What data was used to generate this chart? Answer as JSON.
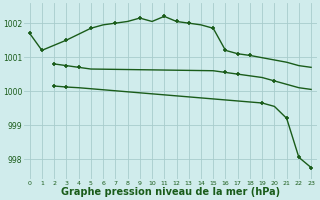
{
  "bg_color": "#d0ecec",
  "line_color": "#1a5c1a",
  "grid_color": "#a8cccc",
  "xlabel": "Graphe pression niveau de la mer (hPa)",
  "xlabel_fontsize": 7,
  "yticks": [
    998,
    999,
    1000,
    1001,
    1002
  ],
  "xtick_labels": [
    "0",
    "1",
    "2",
    "3",
    "4",
    "5",
    "6",
    "7",
    "8",
    "9",
    "10",
    "11",
    "12",
    "13",
    "14",
    "15",
    "16",
    "17",
    "18",
    "19",
    "20",
    "21",
    "22",
    "23"
  ],
  "ylim": [
    997.4,
    1002.6
  ],
  "xlim": [
    -0.5,
    23.5
  ],
  "curve1": {
    "x": [
      0,
      1,
      3,
      5,
      6,
      7,
      8,
      9,
      10,
      11,
      12,
      13,
      14,
      15,
      16,
      17,
      18,
      21,
      22,
      23
    ],
    "y": [
      1001.7,
      1001.2,
      1001.5,
      1001.85,
      1001.95,
      1002.0,
      1002.05,
      1002.15,
      1002.05,
      1002.2,
      1002.05,
      1002.0,
      1001.95,
      1001.85,
      1001.2,
      1001.1,
      1001.05,
      1000.85,
      1000.75,
      1000.7
    ]
  },
  "curve2": {
    "x": [
      2,
      3,
      4,
      5,
      15,
      16,
      17,
      18,
      19,
      20,
      21,
      22,
      23
    ],
    "y": [
      1000.8,
      1000.75,
      1000.7,
      1000.65,
      1000.6,
      1000.55,
      1000.5,
      1000.45,
      1000.4,
      1000.3,
      1000.2,
      1000.1,
      1000.05
    ]
  },
  "curve3": {
    "x": [
      2,
      3,
      4,
      19,
      20,
      21,
      22,
      23
    ],
    "y": [
      1000.15,
      1000.12,
      1000.1,
      999.65,
      999.55,
      999.2,
      998.05,
      997.75
    ]
  },
  "markers1": {
    "x": [
      0,
      1,
      3,
      5,
      7,
      9,
      11,
      12,
      13,
      15,
      16,
      17,
      18
    ],
    "y": [
      1001.7,
      1001.2,
      1001.5,
      1001.85,
      1002.0,
      1002.15,
      1002.2,
      1002.05,
      1002.0,
      1001.85,
      1001.2,
      1001.1,
      1001.05
    ]
  },
  "markers2": {
    "x": [
      2,
      3,
      4,
      16,
      17,
      20
    ],
    "y": [
      1000.8,
      1000.75,
      1000.7,
      1000.55,
      1000.5,
      1000.3
    ]
  },
  "markers3": {
    "x": [
      2,
      3,
      19,
      21,
      22,
      23
    ],
    "y": [
      1000.15,
      1000.12,
      999.65,
      999.2,
      998.05,
      997.75
    ]
  }
}
